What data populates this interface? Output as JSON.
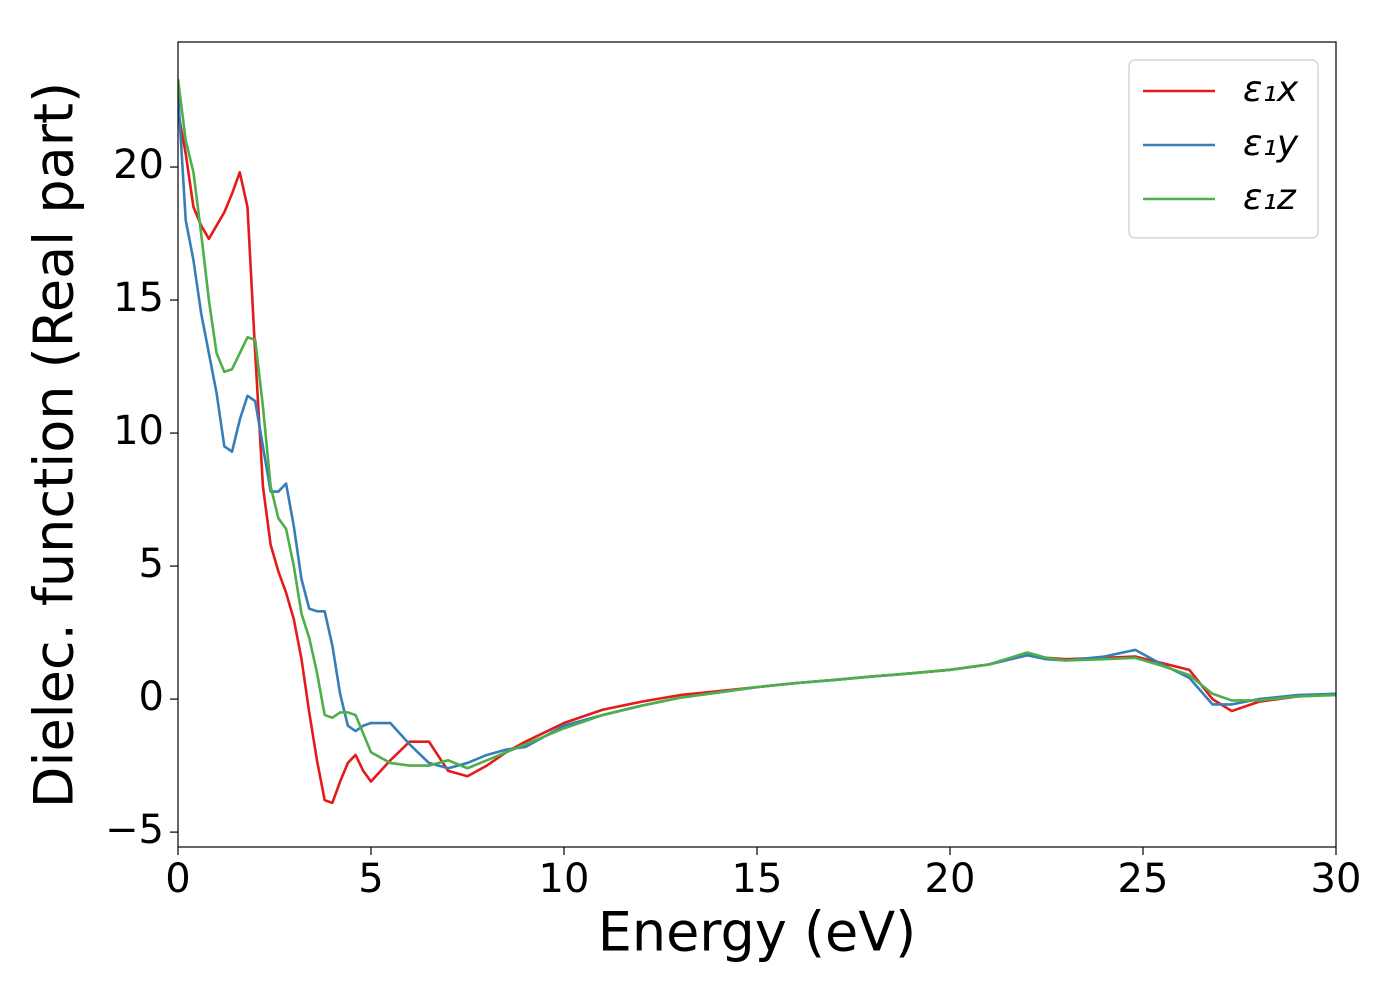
{
  "chart_data": {
    "type": "line",
    "x_label": "Energy (eV)",
    "y_label": "Dielec. function (Real part)",
    "x": [
      0,
      0.2,
      0.4,
      0.6,
      0.8,
      1.0,
      1.2,
      1.4,
      1.6,
      1.8,
      2.0,
      2.2,
      2.4,
      2.6,
      2.8,
      3.0,
      3.2,
      3.4,
      3.6,
      3.8,
      4.0,
      4.2,
      4.4,
      4.6,
      4.8,
      5.0,
      5.5,
      6.0,
      6.5,
      7.0,
      7.5,
      8,
      8.5,
      9,
      10,
      11,
      12,
      13,
      14,
      15,
      16,
      17,
      18,
      19,
      20,
      21,
      22,
      22.5,
      23,
      24,
      24.8,
      25.5,
      26.2,
      26.8,
      27.3,
      28,
      29,
      30
    ],
    "series": [
      {
        "name": "ε₁x",
        "color": "#e41a1c",
        "values": [
          22.1,
          20.5,
          18.5,
          17.8,
          17.3,
          17.8,
          18.3,
          19.0,
          19.8,
          18.5,
          13,
          8,
          5.8,
          4.8,
          4,
          3,
          1.5,
          -0.5,
          -2.3,
          -3.8,
          -3.9,
          -3.1,
          -2.4,
          -2.1,
          -2.7,
          -3.1,
          -2.3,
          -1.6,
          -1.6,
          -2.7,
          -2.9,
          -2.5,
          -2.0,
          -1.6,
          -0.9,
          -0.4,
          -0.1,
          0.15,
          0.3,
          0.45,
          0.6,
          0.72,
          0.85,
          0.97,
          1.1,
          1.3,
          1.65,
          1.55,
          1.5,
          1.55,
          1.6,
          1.35,
          1.1,
          0.0,
          -0.45,
          -0.1,
          0.1,
          0.2
        ]
      },
      {
        "name": "ε₁y",
        "color": "#377eb8",
        "values": [
          22.8,
          18,
          16.5,
          14.5,
          13,
          11.5,
          9.5,
          9.3,
          10.5,
          11.4,
          11.2,
          9.5,
          7.8,
          7.8,
          8.1,
          6.5,
          4.5,
          3.4,
          3.3,
          3.3,
          2.0,
          0.2,
          -1.0,
          -1.2,
          -1.0,
          -0.9,
          -0.9,
          -1.7,
          -2.4,
          -2.6,
          -2.4,
          -2.1,
          -1.9,
          -1.8,
          -1.0,
          -0.6,
          -0.25,
          0.05,
          0.25,
          0.45,
          0.6,
          0.72,
          0.85,
          0.97,
          1.1,
          1.3,
          1.65,
          1.5,
          1.45,
          1.6,
          1.85,
          1.3,
          0.8,
          -0.2,
          -0.2,
          0.0,
          0.15,
          0.2
        ]
      },
      {
        "name": "ε₁z",
        "color": "#4daf4a",
        "values": [
          23.3,
          21,
          19.8,
          17.5,
          15,
          13,
          12.3,
          12.4,
          13,
          13.6,
          13.5,
          11,
          8,
          6.8,
          6.4,
          5,
          3.2,
          2.3,
          1.0,
          -0.6,
          -0.7,
          -0.5,
          -0.5,
          -0.6,
          -1.3,
          -2.0,
          -2.4,
          -2.5,
          -2.5,
          -2.3,
          -2.6,
          -2.3,
          -2.0,
          -1.7,
          -1.1,
          -0.6,
          -0.25,
          0.05,
          0.25,
          0.45,
          0.6,
          0.72,
          0.85,
          0.97,
          1.1,
          1.3,
          1.75,
          1.55,
          1.45,
          1.5,
          1.55,
          1.25,
          0.9,
          0.2,
          -0.05,
          -0.05,
          0.1,
          0.15
        ]
      }
    ],
    "xlim": [
      0,
      30
    ],
    "ylim": [
      -5.56,
      24.7
    ],
    "xticks": [
      0,
      5,
      10,
      15,
      20,
      25,
      30
    ],
    "yticks": [
      {
        "value": -5,
        "label": "−5"
      },
      0,
      5,
      10,
      15,
      20
    ],
    "grid": false,
    "legend": "upper right"
  }
}
